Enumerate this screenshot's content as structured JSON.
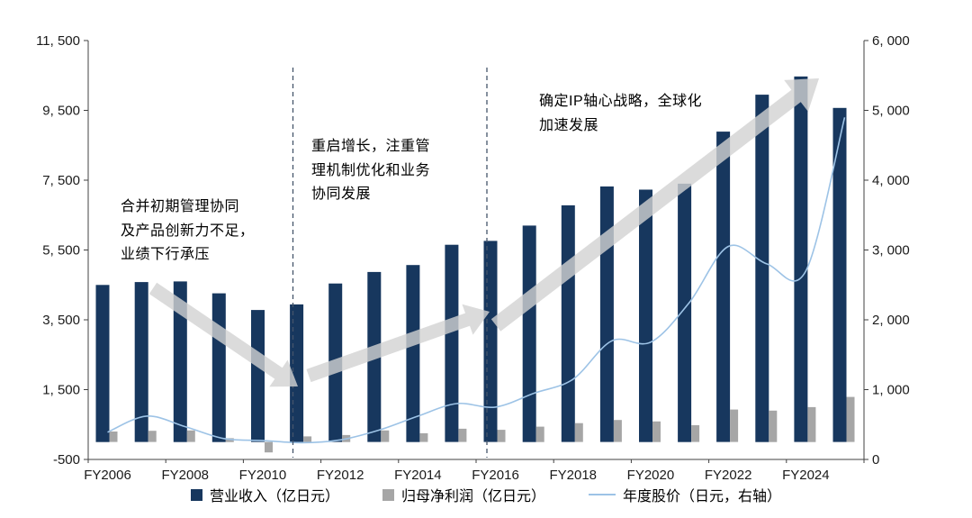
{
  "colors": {
    "revenue_bar": "#17375E",
    "profit_bar": "#A6A6A6",
    "stock_line": "#9DC3E6",
    "phase_divider": "#44546A",
    "trend_arrow": "#D2D2D2",
    "axis_line": "#404040",
    "text": "#1A1A1A"
  },
  "chart_data": {
    "type": "bar+line combo",
    "categories": [
      "FY2006",
      "FY2007",
      "FY2008",
      "FY2009",
      "FY2010",
      "FY2011",
      "FY2012",
      "FY2013",
      "FY2014",
      "FY2015",
      "FY2016",
      "FY2017",
      "FY2018",
      "FY2019",
      "FY2020",
      "FY2021",
      "FY2022",
      "FY2023",
      "FY2024",
      "FY2025"
    ],
    "x_tick_labels": [
      "FY2006",
      "FY2008",
      "FY2010",
      "FY2012",
      "FY2014",
      "FY2016",
      "FY2018",
      "FY2020",
      "FY2022",
      "FY2024"
    ],
    "left_axis": {
      "min": -500,
      "max": 11500,
      "tick_values": [
        -500,
        1500,
        3500,
        5500,
        7500,
        9500,
        11500
      ],
      "tick_labels": [
        "-500",
        "1, 500",
        "3, 500",
        "5, 500",
        "7, 500",
        "9, 500",
        "11, 500"
      ]
    },
    "right_axis": {
      "min": 0,
      "max": 6000,
      "tick_values": [
        0,
        1000,
        2000,
        3000,
        4000,
        5000,
        6000
      ],
      "tick_labels": [
        "0",
        "1, 000",
        "2, 000",
        "3, 000",
        "4, 000",
        "5, 000",
        "6, 000"
      ]
    },
    "series": [
      {
        "name": "营业收入（亿日元）",
        "type": "bar",
        "axis": "left",
        "values": [
          4500,
          4580,
          4600,
          4260,
          3780,
          3940,
          4540,
          4870,
          5070,
          5650,
          5760,
          6200,
          6780,
          7320,
          7230,
          7400,
          8890,
          9950,
          10470,
          9570
        ]
      },
      {
        "name": "归母净利润（亿日元）",
        "type": "bar",
        "axis": "left",
        "values": [
          300,
          320,
          330,
          110,
          -300,
          160,
          200,
          330,
          250,
          380,
          350,
          440,
          540,
          630,
          590,
          480,
          930,
          900,
          1000,
          1290
        ]
      },
      {
        "name": "年度股价（日元，右轴）",
        "type": "line",
        "axis": "right",
        "values": [
          390,
          620,
          470,
          300,
          270,
          240,
          280,
          420,
          620,
          800,
          750,
          950,
          1150,
          1700,
          1680,
          2250,
          3050,
          2800,
          2700,
          4900
        ]
      }
    ],
    "phase_dividers_after": [
      "FY2010",
      "FY2015"
    ],
    "annotations": [
      {
        "lines": [
          "合并初期管理协同",
          "及产品创新力不足，",
          "业绩下行承压"
        ]
      },
      {
        "lines": [
          "重启增长，注重管",
          "理机制优化和业务",
          "协同发展"
        ]
      },
      {
        "lines": [
          "确定IP轴心战略，全球化",
          "加速发展"
        ]
      }
    ]
  }
}
